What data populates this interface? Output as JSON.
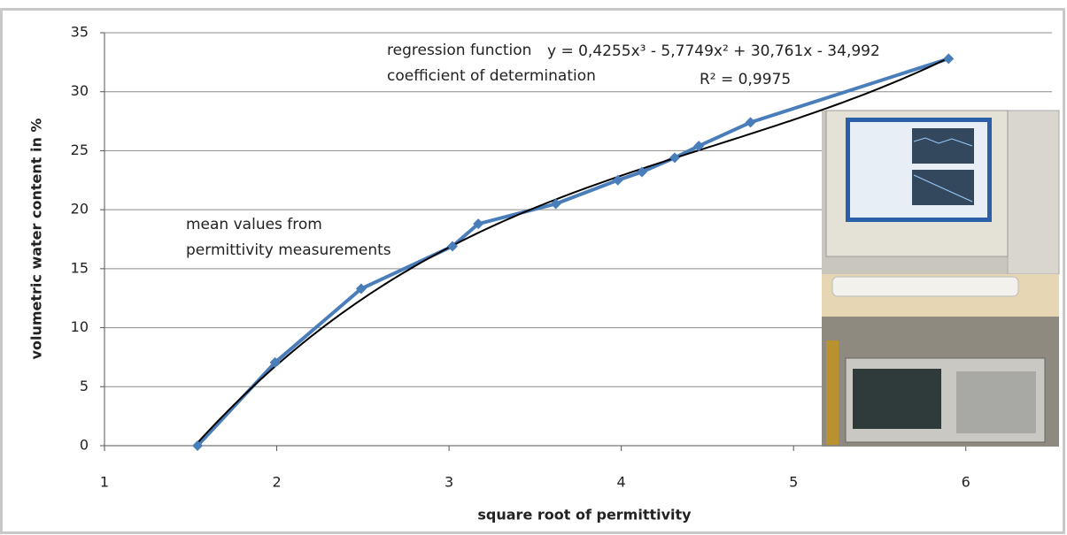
{
  "chart_data": {
    "type": "line",
    "x_label": "square root of permittivity",
    "y_label": "volumetric water content in %",
    "xlim": [
      1,
      6.5
    ],
    "xticks": [
      1,
      2,
      3,
      4,
      5,
      6
    ],
    "ylim": [
      0,
      35
    ],
    "yticks": [
      0,
      5,
      10,
      15,
      20,
      25,
      30,
      35
    ],
    "grid": true,
    "series": [
      {
        "color": "#4a7ebb",
        "x": [
          1.54,
          1.99,
          2.49,
          3.02,
          3.17,
          3.62,
          3.98,
          4.12,
          4.31,
          4.45,
          4.75,
          5.9
        ],
        "values": [
          0,
          7.05,
          13.3,
          16.9,
          18.8,
          20.5,
          22.5,
          23.2,
          24.4,
          25.4,
          27.4,
          32.8
        ]
      }
    ],
    "regression": {
      "color": "#000000",
      "coefficients": [
        0.4255,
        -5.7749,
        30.761,
        -34.992
      ]
    },
    "annotations": {
      "regression_label": "regression function",
      "equation": "y = 0,4255x³ - 5,7749x² + 30,761x - 34,992",
      "determination_label": "coefficient of determination",
      "r_squared": "R² = 0,9975",
      "mean_values": [
        "mean values from",
        "permittivity measurements"
      ]
    }
  }
}
